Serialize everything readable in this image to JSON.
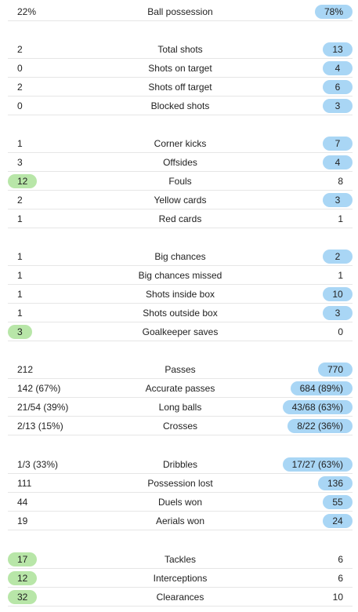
{
  "stats": [
    {
      "label": "Ball possession",
      "home": "22%",
      "away": "78%",
      "leader": "away"
    },
    {
      "label": "Total shots",
      "home": "2",
      "away": "13",
      "leader": "away"
    },
    {
      "label": "Shots on target",
      "home": "0",
      "away": "4",
      "leader": "away"
    },
    {
      "label": "Shots off target",
      "home": "2",
      "away": "6",
      "leader": "away"
    },
    {
      "label": "Blocked shots",
      "home": "0",
      "away": "3",
      "leader": "away"
    },
    {
      "label": "Corner kicks",
      "home": "1",
      "away": "7",
      "leader": "away"
    },
    {
      "label": "Offsides",
      "home": "3",
      "away": "4",
      "leader": "away"
    },
    {
      "label": "Fouls",
      "home": "12",
      "away": "8",
      "leader": "home"
    },
    {
      "label": "Yellow cards",
      "home": "2",
      "away": "3",
      "leader": "away"
    },
    {
      "label": "Red cards",
      "home": "1",
      "away": "1",
      "leader": "none"
    },
    {
      "label": "Big chances",
      "home": "1",
      "away": "2",
      "leader": "away"
    },
    {
      "label": "Big chances missed",
      "home": "1",
      "away": "1",
      "leader": "none"
    },
    {
      "label": "Shots inside box",
      "home": "1",
      "away": "10",
      "leader": "away"
    },
    {
      "label": "Shots outside box",
      "home": "1",
      "away": "3",
      "leader": "away"
    },
    {
      "label": "Goalkeeper saves",
      "home": "3",
      "away": "0",
      "leader": "home"
    },
    {
      "label": "Passes",
      "home": "212",
      "away": "770",
      "leader": "away"
    },
    {
      "label": "Accurate passes",
      "home": "142 (67%)",
      "away": "684 (89%)",
      "leader": "away"
    },
    {
      "label": "Long balls",
      "home": "21/54 (39%)",
      "away": "43/68 (63%)",
      "leader": "away"
    },
    {
      "label": "Crosses",
      "home": "2/13 (15%)",
      "away": "8/22 (36%)",
      "leader": "away"
    },
    {
      "label": "Dribbles",
      "home": "1/3 (33%)",
      "away": "17/27 (63%)",
      "leader": "away"
    },
    {
      "label": "Possession lost",
      "home": "111",
      "away": "136",
      "leader": "away"
    },
    {
      "label": "Duels won",
      "home": "44",
      "away": "55",
      "leader": "away"
    },
    {
      "label": "Aerials won",
      "home": "19",
      "away": "24",
      "leader": "away"
    },
    {
      "label": "Tackles",
      "home": "17",
      "away": "6",
      "leader": "home"
    },
    {
      "label": "Interceptions",
      "home": "12",
      "away": "6",
      "leader": "home"
    },
    {
      "label": "Clearances",
      "home": "32",
      "away": "10",
      "leader": "home"
    }
  ],
  "colors": {
    "home_highlight": "#b8e6a8",
    "away_highlight": "#a9d6f5",
    "divider": "#e6e6e6"
  }
}
